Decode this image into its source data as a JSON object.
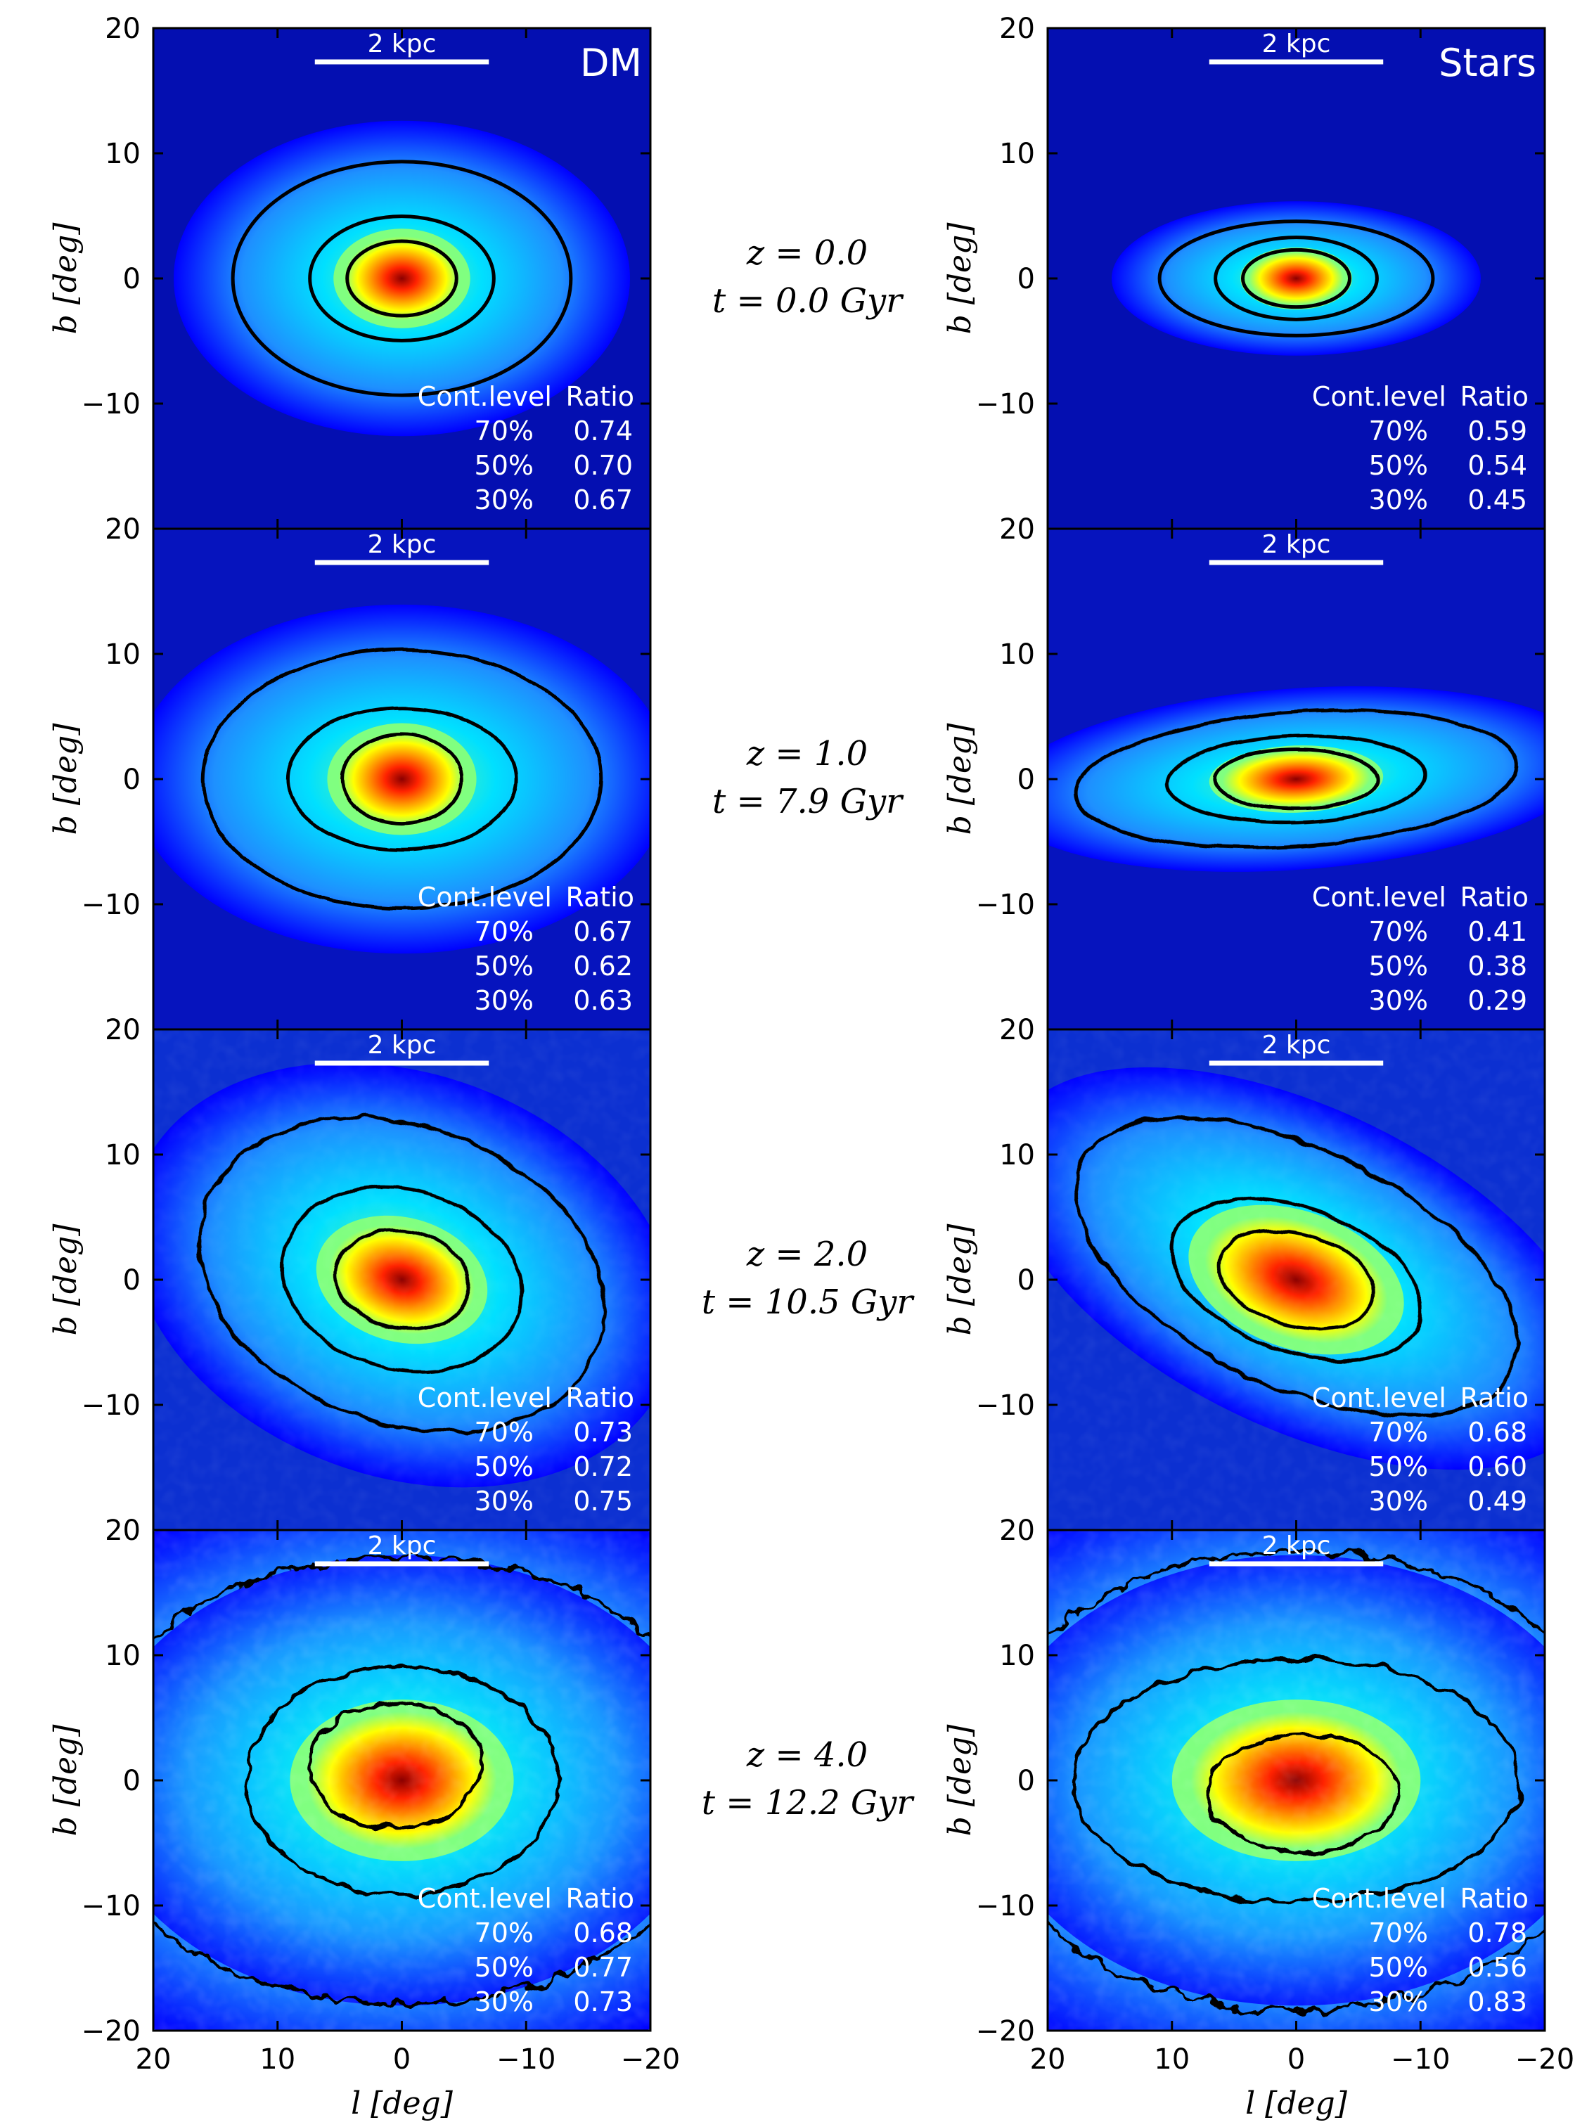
{
  "figure": {
    "columns": [
      {
        "key": "dm",
        "label": "DM"
      },
      {
        "key": "stars",
        "label": "Stars"
      }
    ],
    "scale_bar_label": "2 kpc",
    "table_header": {
      "level": "Cont.level",
      "ratio": "Ratio"
    },
    "levels": [
      "70%",
      "50%",
      "30%"
    ],
    "rows": [
      {
        "z_text": "z = 0.0",
        "t_text": "t = 0.0 Gyr",
        "noise": 0,
        "dm": {
          "ratios": [
            "0.74",
            "0.70",
            "0.67"
          ],
          "contours": [
            {
              "a": 13.6,
              "b": 9.4,
              "ang": 0,
              "cx": 0,
              "cy": 0
            },
            {
              "a": 7.4,
              "b": 5.0,
              "ang": 0,
              "cx": 0,
              "cy": 0
            },
            {
              "a": 4.4,
              "b": 3.0,
              "ang": 0,
              "cx": 0,
              "cy": 0
            }
          ],
          "core": {
            "a": 5.5,
            "b": 4.0,
            "ang": 0
          }
        },
        "stars": {
          "ratios": [
            "0.59",
            "0.54",
            "0.45"
          ],
          "contours": [
            {
              "a": 11.0,
              "b": 4.6,
              "ang": 0,
              "cx": 0,
              "cy": 0
            },
            {
              "a": 6.5,
              "b": 3.3,
              "ang": 0,
              "cx": 0,
              "cy": 0
            },
            {
              "a": 4.3,
              "b": 2.3,
              "ang": 0,
              "cx": 0,
              "cy": 0
            }
          ],
          "core": {
            "a": 4.5,
            "b": 2.5,
            "ang": 0
          }
        }
      },
      {
        "z_text": "z = 1.0",
        "t_text": "t = 7.9 Gyr",
        "noise": 0.04,
        "dm": {
          "ratios": [
            "0.67",
            "0.62",
            "0.63"
          ],
          "contours": [
            {
              "a": 16.0,
              "b": 10.4,
              "ang": 0,
              "cx": 0,
              "cy": 0
            },
            {
              "a": 9.2,
              "b": 5.7,
              "ang": 0,
              "cx": 0,
              "cy": 0
            },
            {
              "a": 4.8,
              "b": 3.6,
              "ang": 0,
              "cx": 0,
              "cy": 0
            }
          ],
          "core": {
            "a": 6.0,
            "b": 4.5,
            "ang": 0
          }
        },
        "stars": {
          "ratios": [
            "0.41",
            "0.38",
            "0.29"
          ],
          "contours": [
            {
              "a": 17.8,
              "b": 5.4,
              "ang": 4,
              "cx": 0,
              "cy": 0
            },
            {
              "a": 10.4,
              "b": 3.5,
              "ang": 2,
              "cx": 0,
              "cy": 0
            },
            {
              "a": 6.6,
              "b": 2.4,
              "ang": 0,
              "cx": 0,
              "cy": 0
            }
          ],
          "core": {
            "a": 7.0,
            "b": 2.7,
            "ang": 2
          }
        }
      },
      {
        "z_text": "z = 2.0",
        "t_text": "t = 10.5 Gyr",
        "noise": 0.08,
        "dm": {
          "ratios": [
            "0.73",
            "0.72",
            "0.75"
          ],
          "contours": [
            {
              "a": 16.8,
              "b": 12.0,
              "ang": -20,
              "cx": 0,
              "cy": 0.4
            },
            {
              "a": 9.8,
              "b": 7.2,
              "ang": -15,
              "cx": 0,
              "cy": 0
            },
            {
              "a": 5.4,
              "b": 3.9,
              "ang": -10,
              "cx": 0,
              "cy": 0
            }
          ],
          "core": {
            "a": 7.0,
            "b": 5.0,
            "ang": -15
          }
        },
        "stars": {
          "ratios": [
            "0.68",
            "0.60",
            "0.49"
          ],
          "contours": [
            {
              "a": 19.2,
              "b": 9.5,
              "ang": -26,
              "cx": 0,
              "cy": 1
            },
            {
              "a": 10.5,
              "b": 5.8,
              "ang": -20,
              "cx": 0,
              "cy": 0
            },
            {
              "a": 6.4,
              "b": 3.7,
              "ang": -15,
              "cx": 0,
              "cy": 0
            }
          ],
          "core": {
            "a": 9.0,
            "b": 5.5,
            "ang": -20
          }
        }
      },
      {
        "z_text": "z = 4.0",
        "t_text": "t = 12.2 Gyr",
        "noise": 0.16,
        "dm": {
          "ratios": [
            "0.68",
            "0.77",
            "0.73"
          ],
          "contours": [
            {
              "a": 26.0,
              "b": 18.0,
              "ang": 0,
              "cx": 0,
              "cy": 0
            },
            {
              "a": 12.5,
              "b": 9.2,
              "ang": 0,
              "cx": 0,
              "cy": 0
            },
            {
              "a": 6.9,
              "b": 5.0,
              "ang": 0,
              "cx": 0.5,
              "cy": 1.2
            }
          ],
          "core": {
            "a": 9.0,
            "b": 6.5,
            "ang": 0
          }
        },
        "stars": {
          "ratios": [
            "0.78",
            "0.56",
            "0.83"
          ],
          "contours": [
            {
              "a": 26.0,
              "b": 18.5,
              "ang": 0,
              "cx": 0,
              "cy": 0
            },
            {
              "a": 18.0,
              "b": 9.8,
              "ang": 0,
              "cx": 0,
              "cy": 0
            },
            {
              "a": 7.6,
              "b": 4.7,
              "ang": 0,
              "cx": -0.5,
              "cy": -1.0
            }
          ],
          "core": {
            "a": 10.0,
            "b": 6.5,
            "ang": 0
          }
        }
      }
    ],
    "colors": [
      "#00008b",
      "#0000ff",
      "#1e90ff",
      "#00e0ff",
      "#80ff80",
      "#ffff00",
      "#ff9900",
      "#ff2200",
      "#8b0000"
    ]
  },
  "chart_data": {
    "type": "heatmap",
    "title": "",
    "xlabel": "l [deg]",
    "ylabel": "b [deg]",
    "xlim": [
      20,
      -20
    ],
    "ylim": [
      -20,
      20
    ],
    "xticks": [
      20,
      10,
      0,
      -10,
      -20
    ],
    "xtick_labels": [
      "20",
      "10",
      "0",
      "−10",
      "−20"
    ],
    "yticks": [
      20,
      10,
      0,
      -10,
      -20
    ],
    "ytick_labels": [
      "20",
      "10",
      "0",
      "−10",
      "−20"
    ],
    "scale_bar": {
      "label": "2 kpc",
      "l_range": [
        7,
        -7
      ]
    },
    "contour_levels": [
      "70%",
      "50%",
      "30%"
    ],
    "legend": "bottom-right table of contour level and axis ratio in each panel"
  }
}
